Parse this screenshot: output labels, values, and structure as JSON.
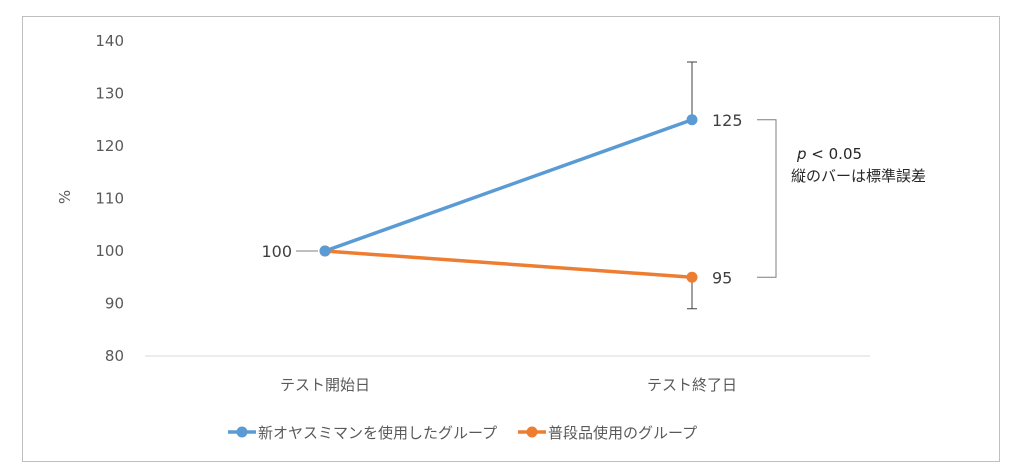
{
  "chart_data": {
    "type": "line",
    "categories": [
      "テスト開始日",
      "テスト終了日"
    ],
    "ylabel": "%",
    "ylim": [
      80,
      140
    ],
    "yticks": [
      80,
      90,
      100,
      110,
      120,
      130,
      140
    ],
    "grid": false,
    "legend_position": "bottom",
    "series": [
      {
        "name": "新オヤスミマンを使用したグループ",
        "color": "#5b9bd5",
        "values": [
          100,
          125
        ],
        "error": [
          0,
          11
        ]
      },
      {
        "name": "普段品使用のグループ",
        "color": "#ed7d31",
        "values": [
          100,
          95
        ],
        "error": [
          0,
          6
        ]
      }
    ],
    "data_labels": {
      "start": "100",
      "end_series1": "125",
      "end_series2": "95"
    },
    "annotation": {
      "p_italic": "p",
      "p_rest": " < 0.05",
      "note": "縦のバーは標準誤差"
    }
  }
}
